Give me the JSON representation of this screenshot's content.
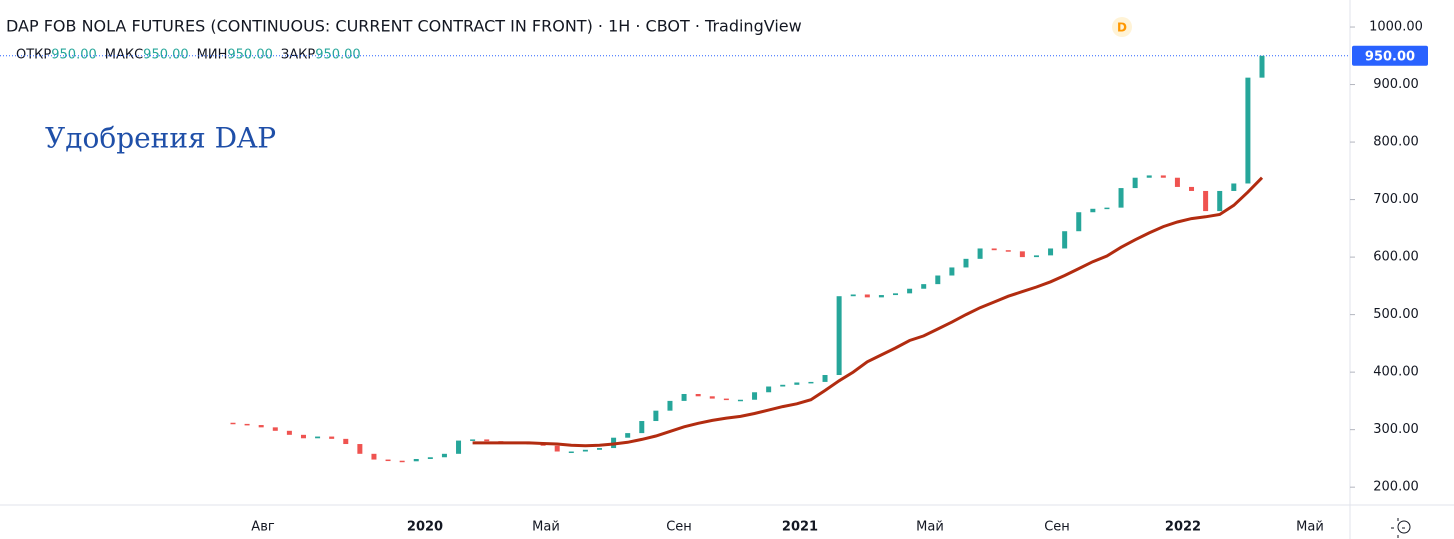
{
  "chart_data": {
    "type": "candlestick",
    "title": "DAP FOB NOLA FUTURES (CONTINUOUS: CURRENT CONTRACT IN FRONT) · 1Н · CBOT · TradingView",
    "badge": "D",
    "ohlc": [
      {
        "label": "ОТКР",
        "value": "950.00"
      },
      {
        "label": "МАКС",
        "value": "950.00"
      },
      {
        "label": "МИН",
        "value": "950.00"
      },
      {
        "label": "ЗАКР",
        "value": "950.00"
      }
    ],
    "annotation": "Удобрения DAP",
    "last_price": {
      "value": 950,
      "label": "950.00"
    },
    "xtick_labels": [
      "Авг",
      "2020",
      "Май",
      "Сен",
      "2021",
      "Май",
      "Сен",
      "2022",
      "Май"
    ],
    "ylim": [
      169,
      1047
    ],
    "yticks": [
      {
        "value": 200,
        "label": "200.00"
      },
      {
        "value": 300,
        "label": "300.00"
      },
      {
        "value": 400,
        "label": "400.00"
      },
      {
        "value": 500,
        "label": "500.00"
      },
      {
        "value": 600,
        "label": "600.00"
      },
      {
        "value": 700,
        "label": "700.00"
      },
      {
        "value": 800,
        "label": "800.00"
      },
      {
        "value": 900,
        "label": "900.00"
      },
      {
        "value": 1000,
        "label": "1000.00"
      }
    ],
    "up_color": "#26a69a",
    "down_color": "#ef5350",
    "open": [
      312,
      310,
      308,
      304,
      298,
      291,
      285,
      288,
      284,
      275,
      258,
      248,
      246,
      245,
      249,
      252,
      258,
      281,
      283,
      280,
      278,
      277,
      276,
      272,
      262,
      262,
      265,
      268,
      286,
      294,
      315,
      333,
      350,
      362,
      358,
      354,
      352,
      352,
      365,
      375,
      378,
      382,
      383,
      395,
      532,
      535,
      530,
      534,
      537,
      545,
      553,
      568,
      582,
      597,
      615,
      612,
      610,
      600,
      603,
      615,
      645,
      678,
      684,
      686,
      720,
      738,
      742,
      738,
      722,
      715,
      680,
      715,
      728,
      912
    ],
    "close": [
      310,
      308,
      304,
      298,
      291,
      285,
      288,
      284,
      275,
      258,
      248,
      246,
      245,
      249,
      252,
      258,
      281,
      283,
      280,
      278,
      277,
      276,
      272,
      262,
      262,
      265,
      268,
      286,
      294,
      315,
      333,
      350,
      362,
      358,
      354,
      352,
      352,
      365,
      375,
      378,
      382,
      383,
      395,
      532,
      535,
      530,
      534,
      537,
      545,
      553,
      568,
      582,
      597,
      615,
      612,
      610,
      600,
      603,
      615,
      645,
      678,
      684,
      686,
      720,
      738,
      742,
      738,
      722,
      715,
      680,
      715,
      728,
      912,
      950
    ],
    "ma": {
      "color": "#b22c10",
      "values": [
        null,
        null,
        null,
        null,
        null,
        null,
        null,
        null,
        null,
        null,
        null,
        null,
        null,
        null,
        null,
        null,
        null,
        277,
        277,
        277,
        277,
        277,
        276,
        275,
        273,
        272,
        273,
        275,
        278,
        283,
        289,
        297,
        305,
        311,
        316,
        320,
        323,
        328,
        334,
        340,
        345,
        352,
        368,
        385,
        400,
        418,
        430,
        442,
        455,
        463,
        475,
        487,
        500,
        512,
        522,
        532,
        540,
        548,
        557,
        568,
        580,
        592,
        602,
        617,
        630,
        642,
        653,
        661,
        667,
        670,
        674,
        690,
        713,
        738
      ]
    }
  }
}
